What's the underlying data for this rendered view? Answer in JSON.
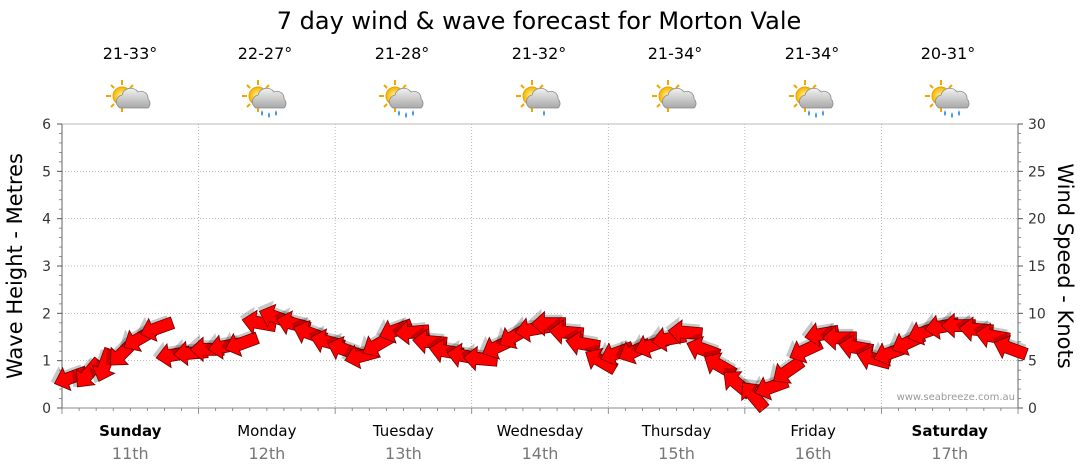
{
  "chart_data": {
    "type": "line",
    "title": "7 day wind & wave forecast for Morton Vale",
    "ylabel_left": "Wave Height - Metres",
    "ylabel_right": "Wind Speed - Knots",
    "ylim_left": [
      0,
      6
    ],
    "ylim_right": [
      0,
      30
    ],
    "yticks_left": [
      "0",
      "1",
      "2",
      "3",
      "4",
      "5",
      "6"
    ],
    "yticks_right": [
      "0",
      "5",
      "10",
      "15",
      "20",
      "25",
      "30"
    ],
    "days": [
      {
        "name": "Sunday",
        "date": "11th",
        "temp": "21-33°",
        "icon": "partly-cloudy-icon",
        "bold": true
      },
      {
        "name": "Monday",
        "date": "12th",
        "temp": "22-27°",
        "icon": "partly-cloudy-rain-icon",
        "bold": false
      },
      {
        "name": "Tuesday",
        "date": "13th",
        "temp": "21-28°",
        "icon": "partly-cloudy-rain-icon",
        "bold": false
      },
      {
        "name": "Wednesday",
        "date": "14th",
        "temp": "21-32°",
        "icon": "partly-cloudy-showers-icon",
        "bold": false
      },
      {
        "name": "Thursday",
        "date": "15th",
        "temp": "21-34°",
        "icon": "partly-cloudy-icon",
        "bold": false
      },
      {
        "name": "Friday",
        "date": "16th",
        "temp": "21-34°",
        "icon": "partly-cloudy-rain-icon",
        "bold": false
      },
      {
        "name": "Saturday",
        "date": "17th",
        "temp": "20-31°",
        "icon": "partly-cloudy-rain-icon",
        "bold": true
      }
    ],
    "series": [
      {
        "name": "Wind Speed (knots)",
        "color": "#ff0000",
        "marker": "wind-direction-arrow",
        "day_offsets": [
          0.0,
          0.13,
          0.25,
          0.38,
          0.5,
          0.63,
          0.75,
          0.88,
          1.0,
          1.13,
          1.25,
          1.38,
          1.5,
          1.63,
          1.75,
          1.88,
          2.0,
          2.13,
          2.25,
          2.38,
          2.5,
          2.63,
          2.75,
          2.88,
          3.0,
          3.13,
          3.25,
          3.38,
          3.5,
          3.63,
          3.75,
          3.88,
          4.0,
          4.13,
          4.25,
          4.38,
          4.5,
          4.63,
          4.75,
          4.88,
          5.0,
          5.13,
          5.25,
          5.38,
          5.5,
          5.63,
          5.75,
          5.88,
          6.0,
          6.13,
          6.25,
          6.38,
          6.5,
          6.63,
          6.75,
          6.88
        ],
        "values": [
          3.2,
          3.6,
          4.5,
          5.8,
          7.3,
          8.4,
          5.6,
          5.8,
          6.2,
          6.5,
          6.8,
          9.0,
          9.6,
          8.9,
          7.9,
          7.0,
          6.2,
          5.5,
          6.7,
          8.2,
          8.0,
          7.0,
          6.0,
          5.5,
          5.2,
          6.5,
          7.6,
          8.3,
          8.9,
          8.0,
          6.8,
          5.0,
          5.8,
          6.0,
          6.6,
          7.3,
          8.0,
          6.2,
          4.5,
          2.6,
          1.3,
          2.2,
          3.9,
          6.1,
          7.8,
          7.4,
          6.4,
          5.2,
          5.8,
          6.9,
          8.0,
          8.6,
          8.7,
          8.3,
          7.6,
          6.3
        ],
        "directions_deg": [
          200,
          230,
          250,
          225,
          210,
          200,
          190,
          185,
          180,
          190,
          200,
          170,
          160,
          165,
          160,
          165,
          160,
          195,
          210,
          200,
          185,
          175,
          170,
          170,
          175,
          205,
          210,
          190,
          180,
          175,
          170,
          150,
          200,
          205,
          200,
          190,
          175,
          160,
          150,
          140,
          130,
          200,
          215,
          205,
          190,
          180,
          170,
          165,
          200,
          205,
          200,
          190,
          180,
          175,
          170,
          160
        ]
      }
    ],
    "attribution": "www.seabreeze.com.au"
  }
}
